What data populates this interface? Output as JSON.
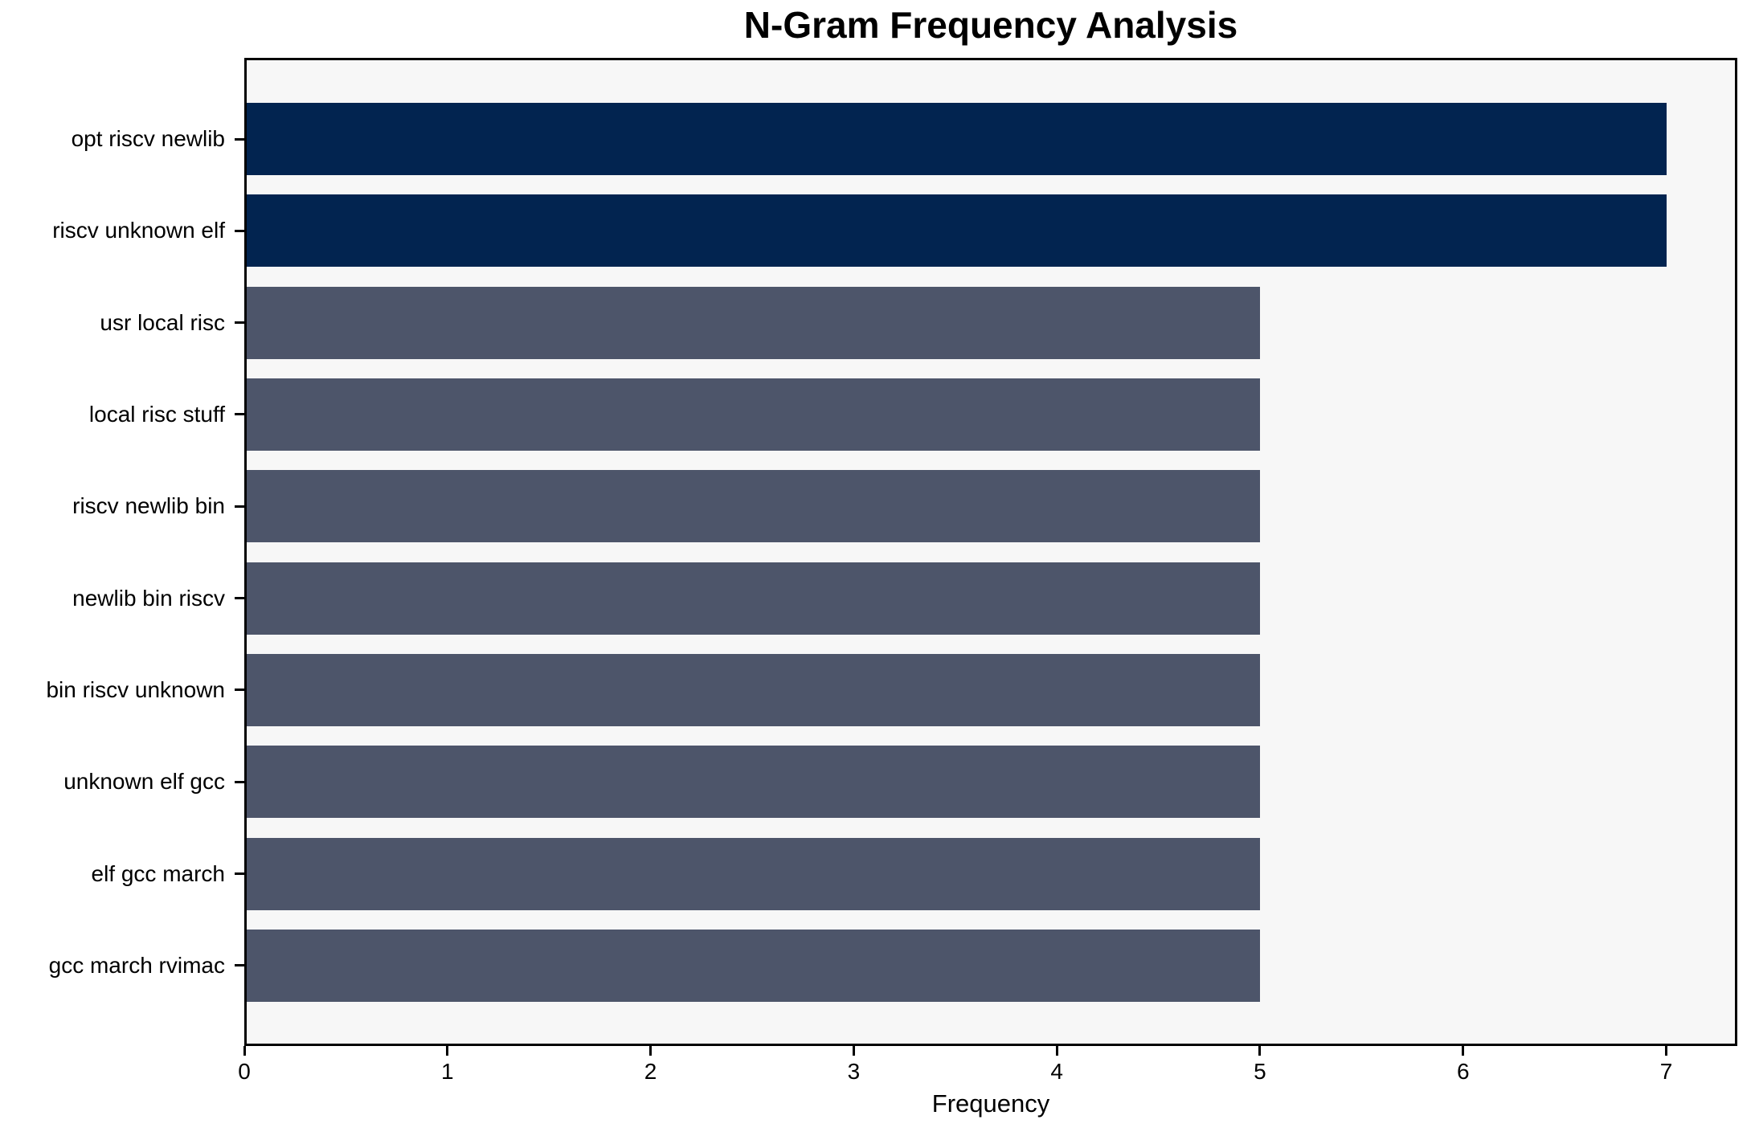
{
  "chart_data": {
    "type": "bar",
    "orientation": "horizontal",
    "title": "N-Gram Frequency Analysis",
    "xlabel": "Frequency",
    "ylabel": "",
    "categories": [
      "opt riscv newlib",
      "riscv unknown elf",
      "usr local risc",
      "local risc stuff",
      "riscv newlib bin",
      "newlib bin riscv",
      "bin riscv unknown",
      "unknown elf gcc",
      "elf gcc march",
      "gcc march rvimac"
    ],
    "values": [
      7,
      7,
      5,
      5,
      5,
      5,
      5,
      5,
      5,
      5
    ],
    "bar_colors": [
      "#022450",
      "#022450",
      "#4d556a",
      "#4d556a",
      "#4d556a",
      "#4d556a",
      "#4d556a",
      "#4d556a",
      "#4d556a",
      "#4d556a"
    ],
    "x_ticks": [
      0,
      1,
      2,
      3,
      4,
      5,
      6,
      7
    ],
    "xlim": [
      0,
      7.35
    ],
    "grid": false,
    "legend": false,
    "colors": {
      "highlight": "#022450",
      "base": "#4d556a",
      "plot_background": "#f7f7f7",
      "figure_background": "#ffffff",
      "spine": "#000000",
      "text": "#000000"
    }
  }
}
